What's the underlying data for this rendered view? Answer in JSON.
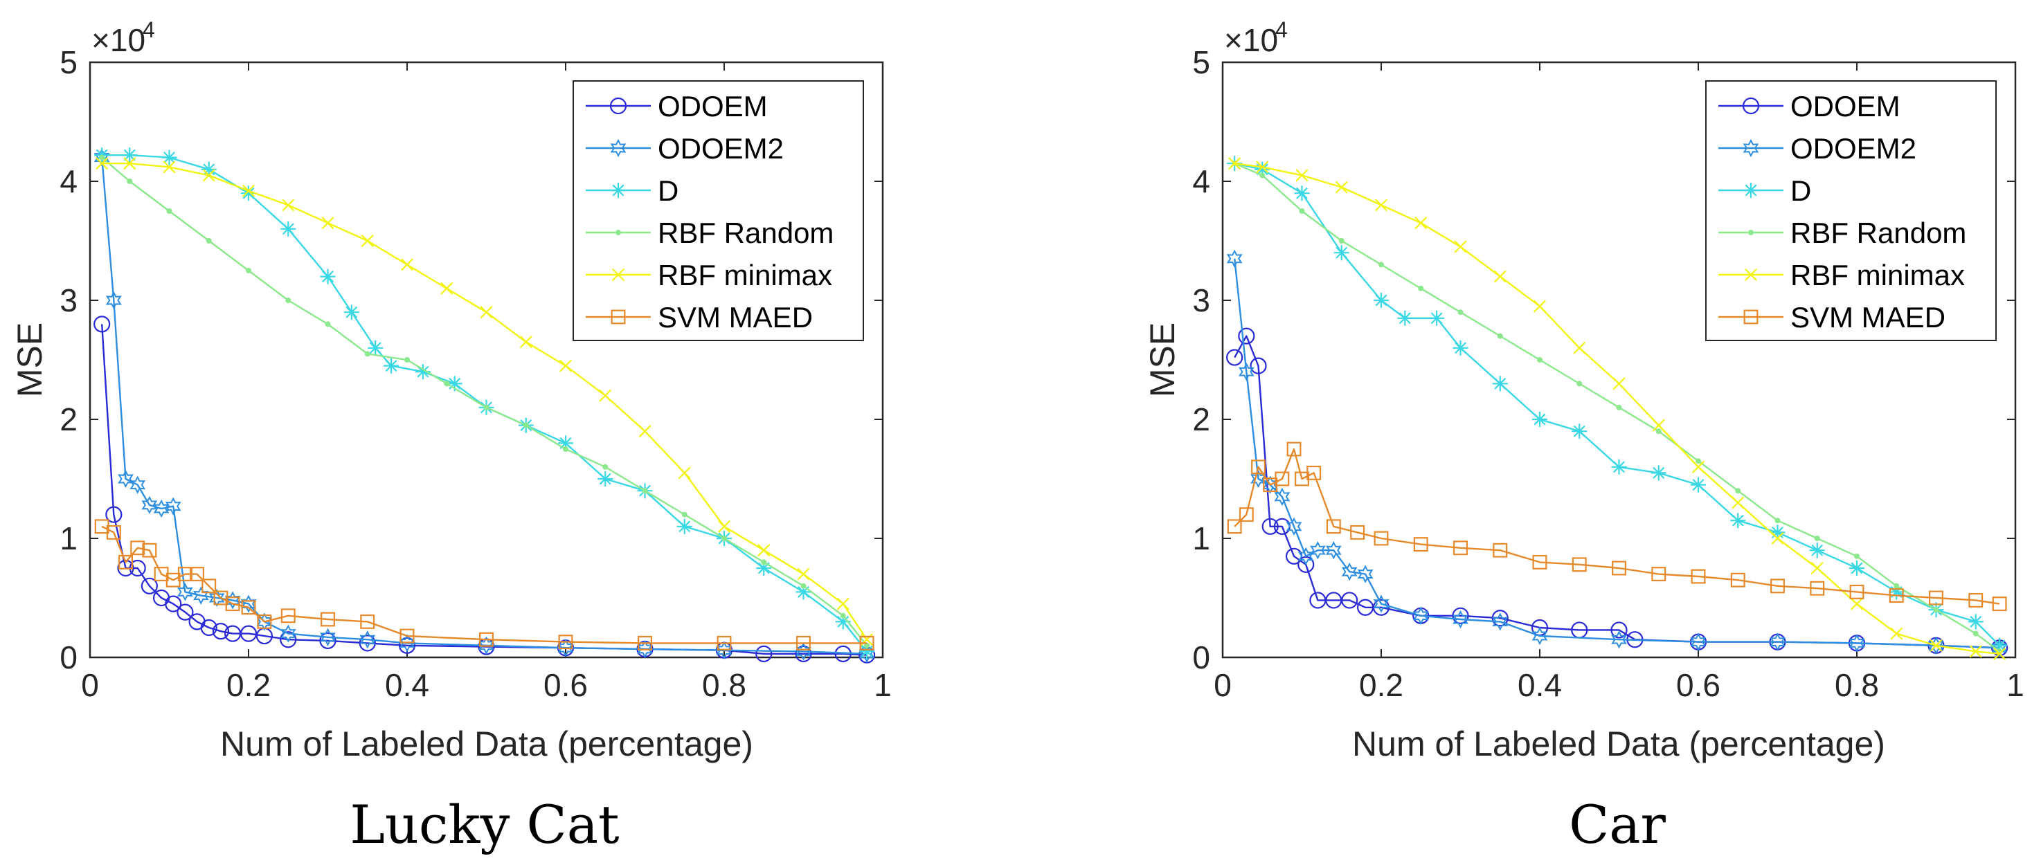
{
  "chart_data": [
    {
      "type": "line",
      "subtitle": "Lucky Cat",
      "xlabel": "Num of Labeled Data (percentage)",
      "ylabel": "MSE",
      "exponent_label": "×10",
      "exponent_power": "4",
      "xlim": [
        0,
        1
      ],
      "ylim": [
        0,
        5
      ],
      "xticks": [
        "0",
        "0.2",
        "0.4",
        "0.6",
        "0.8",
        "1"
      ],
      "yticks": [
        "0",
        "1",
        "2",
        "3",
        "4",
        "5"
      ],
      "legend_position": "top-right",
      "series": [
        {
          "name": "ODOEM",
          "color": "#2a2ad6",
          "marker": "circle",
          "x": [
            0.015,
            0.03,
            0.045,
            0.06,
            0.075,
            0.09,
            0.105,
            0.12,
            0.135,
            0.15,
            0.165,
            0.18,
            0.2,
            0.22,
            0.25,
            0.3,
            0.35,
            0.4,
            0.5,
            0.6,
            0.7,
            0.8,
            0.85,
            0.9,
            0.95,
            0.98
          ],
          "y": [
            2.8,
            1.2,
            0.75,
            0.75,
            0.6,
            0.5,
            0.45,
            0.38,
            0.3,
            0.25,
            0.22,
            0.2,
            0.2,
            0.18,
            0.15,
            0.14,
            0.12,
            0.1,
            0.09,
            0.08,
            0.07,
            0.06,
            0.03,
            0.03,
            0.03,
            0.02
          ]
        },
        {
          "name": "ODOEM2",
          "color": "#2d8ee0",
          "marker": "hexagram",
          "x": [
            0.015,
            0.03,
            0.045,
            0.06,
            0.075,
            0.09,
            0.105,
            0.12,
            0.14,
            0.16,
            0.18,
            0.2,
            0.22,
            0.25,
            0.3,
            0.35,
            0.4,
            0.5,
            0.6,
            0.7,
            0.8,
            0.9,
            0.98
          ],
          "y": [
            4.2,
            3.0,
            1.5,
            1.45,
            1.28,
            1.25,
            1.27,
            0.55,
            0.52,
            0.5,
            0.48,
            0.45,
            0.3,
            0.2,
            0.17,
            0.15,
            0.12,
            0.1,
            0.08,
            0.07,
            0.06,
            0.05,
            0.03
          ]
        },
        {
          "name": "D",
          "color": "#3ad8e4",
          "marker": "asterisk",
          "x": [
            0.015,
            0.05,
            0.1,
            0.15,
            0.2,
            0.25,
            0.3,
            0.33,
            0.36,
            0.38,
            0.42,
            0.46,
            0.5,
            0.55,
            0.6,
            0.65,
            0.7,
            0.75,
            0.8,
            0.85,
            0.9,
            0.95,
            0.98
          ],
          "y": [
            4.22,
            4.22,
            4.2,
            4.1,
            3.9,
            3.6,
            3.2,
            2.9,
            2.6,
            2.45,
            2.4,
            2.3,
            2.1,
            1.95,
            1.8,
            1.5,
            1.4,
            1.1,
            1.0,
            0.75,
            0.55,
            0.3,
            0.05
          ]
        },
        {
          "name": "RBF Random",
          "color": "#8ce88c",
          "marker": "dot",
          "x": [
            0.015,
            0.05,
            0.1,
            0.15,
            0.2,
            0.25,
            0.3,
            0.35,
            0.4,
            0.45,
            0.5,
            0.55,
            0.6,
            0.65,
            0.7,
            0.75,
            0.8,
            0.85,
            0.9,
            0.95,
            0.98
          ],
          "y": [
            4.2,
            4.0,
            3.75,
            3.5,
            3.25,
            3.0,
            2.8,
            2.55,
            2.5,
            2.3,
            2.1,
            1.95,
            1.75,
            1.6,
            1.4,
            1.2,
            1.0,
            0.8,
            0.6,
            0.35,
            0.1
          ]
        },
        {
          "name": "RBF minimax",
          "color": "#f3f312",
          "marker": "cross",
          "x": [
            0.015,
            0.05,
            0.1,
            0.15,
            0.2,
            0.25,
            0.3,
            0.35,
            0.4,
            0.45,
            0.5,
            0.55,
            0.6,
            0.65,
            0.7,
            0.75,
            0.8,
            0.85,
            0.9,
            0.95,
            0.98
          ],
          "y": [
            4.15,
            4.15,
            4.12,
            4.05,
            3.92,
            3.8,
            3.65,
            3.5,
            3.3,
            3.1,
            2.9,
            2.65,
            2.45,
            2.2,
            1.9,
            1.55,
            1.1,
            0.9,
            0.7,
            0.45,
            0.15
          ]
        },
        {
          "name": "SVM MAED",
          "color": "#e6892a",
          "marker": "square",
          "x": [
            0.015,
            0.03,
            0.045,
            0.06,
            0.075,
            0.09,
            0.105,
            0.12,
            0.135,
            0.15,
            0.165,
            0.18,
            0.2,
            0.22,
            0.25,
            0.3,
            0.35,
            0.4,
            0.5,
            0.6,
            0.7,
            0.8,
            0.9,
            0.98
          ],
          "y": [
            1.1,
            1.05,
            0.8,
            0.92,
            0.9,
            0.7,
            0.65,
            0.7,
            0.7,
            0.6,
            0.5,
            0.45,
            0.42,
            0.3,
            0.35,
            0.32,
            0.3,
            0.18,
            0.15,
            0.13,
            0.12,
            0.12,
            0.12,
            0.12
          ]
        }
      ]
    },
    {
      "type": "line",
      "subtitle": "Car",
      "xlabel": "Num of Labeled Data (percentage)",
      "ylabel": "MSE",
      "exponent_label": "×10",
      "exponent_power": "4",
      "xlim": [
        0,
        1
      ],
      "ylim": [
        0,
        5
      ],
      "xticks": [
        "0",
        "0.2",
        "0.4",
        "0.6",
        "0.8",
        "1"
      ],
      "yticks": [
        "0",
        "1",
        "2",
        "3",
        "4",
        "5"
      ],
      "legend_position": "top-right",
      "series": [
        {
          "name": "ODOEM",
          "color": "#2a2ad6",
          "marker": "circle",
          "x": [
            0.015,
            0.03,
            0.045,
            0.06,
            0.075,
            0.09,
            0.105,
            0.12,
            0.14,
            0.16,
            0.18,
            0.2,
            0.25,
            0.3,
            0.35,
            0.4,
            0.45,
            0.5,
            0.52,
            0.6,
            0.7,
            0.8,
            0.9,
            0.98
          ],
          "y": [
            2.52,
            2.7,
            2.45,
            1.1,
            1.1,
            0.85,
            0.78,
            0.48,
            0.48,
            0.48,
            0.42,
            0.42,
            0.35,
            0.35,
            0.33,
            0.25,
            0.23,
            0.23,
            0.15,
            0.13,
            0.13,
            0.12,
            0.1,
            0.08
          ]
        },
        {
          "name": "ODOEM2",
          "color": "#2d8ee0",
          "marker": "hexagram",
          "x": [
            0.015,
            0.03,
            0.045,
            0.06,
            0.075,
            0.09,
            0.105,
            0.12,
            0.14,
            0.16,
            0.18,
            0.2,
            0.25,
            0.3,
            0.35,
            0.4,
            0.5,
            0.6,
            0.7,
            0.8,
            0.9,
            0.98
          ],
          "y": [
            3.35,
            2.4,
            1.5,
            1.45,
            1.35,
            1.1,
            0.85,
            0.9,
            0.9,
            0.72,
            0.7,
            0.45,
            0.35,
            0.32,
            0.3,
            0.18,
            0.15,
            0.13,
            0.13,
            0.12,
            0.1,
            0.08
          ]
        },
        {
          "name": "D",
          "color": "#3ad8e4",
          "marker": "asterisk",
          "x": [
            0.015,
            0.05,
            0.1,
            0.15,
            0.2,
            0.23,
            0.27,
            0.3,
            0.35,
            0.4,
            0.45,
            0.5,
            0.55,
            0.6,
            0.65,
            0.7,
            0.75,
            0.8,
            0.85,
            0.9,
            0.95,
            0.98
          ],
          "y": [
            4.15,
            4.1,
            3.9,
            3.4,
            3.0,
            2.85,
            2.85,
            2.6,
            2.3,
            2.0,
            1.9,
            1.6,
            1.55,
            1.45,
            1.15,
            1.05,
            0.9,
            0.75,
            0.55,
            0.4,
            0.3,
            0.1
          ]
        },
        {
          "name": "RBF Random",
          "color": "#8ce88c",
          "marker": "dot",
          "x": [
            0.015,
            0.05,
            0.1,
            0.15,
            0.2,
            0.25,
            0.3,
            0.35,
            0.4,
            0.45,
            0.5,
            0.55,
            0.6,
            0.65,
            0.7,
            0.75,
            0.8,
            0.85,
            0.9,
            0.95,
            0.98
          ],
          "y": [
            4.15,
            4.05,
            3.75,
            3.5,
            3.3,
            3.1,
            2.9,
            2.7,
            2.5,
            2.3,
            2.1,
            1.9,
            1.65,
            1.4,
            1.15,
            1.0,
            0.85,
            0.6,
            0.4,
            0.2,
            0.05
          ]
        },
        {
          "name": "RBF minimax",
          "color": "#f3f312",
          "marker": "cross",
          "x": [
            0.015,
            0.05,
            0.1,
            0.15,
            0.2,
            0.25,
            0.3,
            0.35,
            0.4,
            0.45,
            0.5,
            0.55,
            0.6,
            0.65,
            0.7,
            0.75,
            0.8,
            0.85,
            0.9,
            0.95,
            0.98
          ],
          "y": [
            4.15,
            4.12,
            4.05,
            3.95,
            3.8,
            3.65,
            3.45,
            3.2,
            2.95,
            2.6,
            2.3,
            1.95,
            1.6,
            1.3,
            1.0,
            0.75,
            0.45,
            0.2,
            0.1,
            0.05,
            0.03
          ]
        },
        {
          "name": "SVM MAED",
          "color": "#e6892a",
          "marker": "square",
          "x": [
            0.015,
            0.03,
            0.045,
            0.06,
            0.075,
            0.09,
            0.1,
            0.115,
            0.14,
            0.17,
            0.2,
            0.25,
            0.3,
            0.35,
            0.4,
            0.45,
            0.5,
            0.55,
            0.6,
            0.65,
            0.7,
            0.75,
            0.8,
            0.85,
            0.9,
            0.95,
            0.98
          ],
          "y": [
            1.1,
            1.2,
            1.6,
            1.45,
            1.5,
            1.75,
            1.5,
            1.55,
            1.1,
            1.05,
            1.0,
            0.95,
            0.92,
            0.9,
            0.8,
            0.78,
            0.75,
            0.7,
            0.68,
            0.65,
            0.6,
            0.58,
            0.55,
            0.52,
            0.5,
            0.48,
            0.45
          ]
        }
      ]
    }
  ]
}
